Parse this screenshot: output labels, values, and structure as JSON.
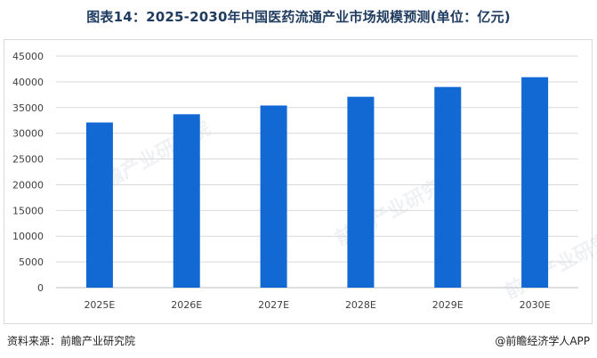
{
  "title": "图表14：2025-2030年中国医药流通产业市场规模预测(单位：亿元)",
  "source": "资料来源：前瞻产业研究院",
  "credit": "@前瞻经济学人APP",
  "watermark": "前瞻产业研究院",
  "colors": {
    "bar": "#1369d3",
    "grid": "#d9d9d9",
    "axis_text": "#404040"
  },
  "chart_data": {
    "type": "bar",
    "categories": [
      "2025E",
      "2026E",
      "2027E",
      "2028E",
      "2029E",
      "2030E"
    ],
    "values": [
      32100,
      33700,
      35400,
      37100,
      39000,
      40900
    ],
    "ylim": [
      0,
      45000
    ],
    "yticks": [
      0,
      5000,
      10000,
      15000,
      20000,
      25000,
      30000,
      35000,
      40000,
      45000
    ],
    "ytick_labels": [
      "0",
      "5000",
      "10000",
      "15000",
      "20000",
      "25000",
      "30000",
      "35000",
      "40000",
      "45000"
    ],
    "xlabel": "",
    "ylabel": "",
    "grid": true,
    "legend": "none"
  }
}
